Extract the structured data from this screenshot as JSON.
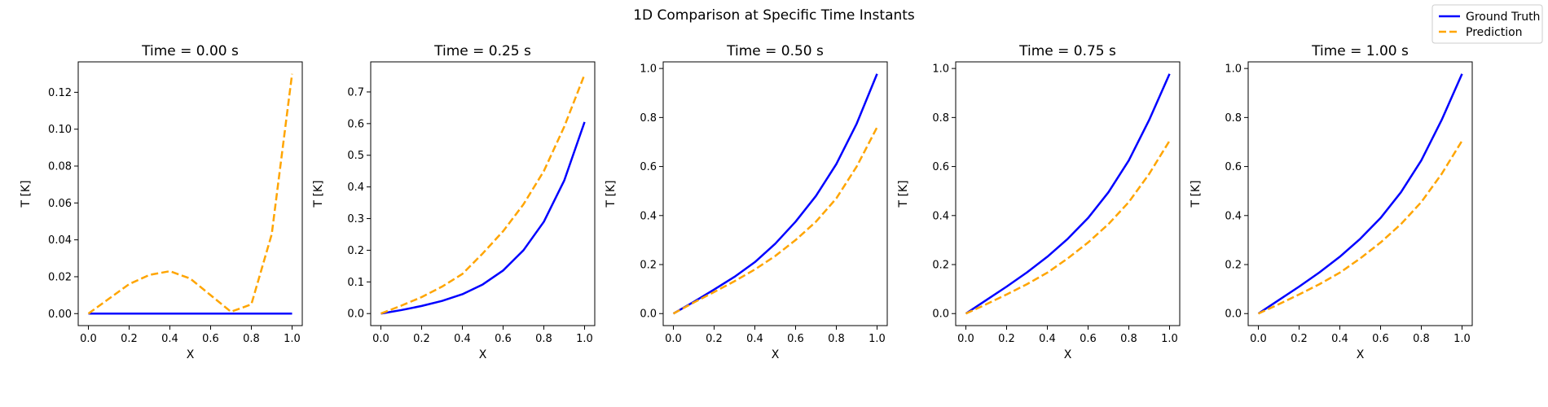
{
  "figure": {
    "suptitle": "1D Comparison at Specific Time Instants",
    "legend": {
      "placement": "top-right",
      "entries": [
        {
          "label": "Ground Truth",
          "color": "#0000ff",
          "style": "solid"
        },
        {
          "label": "Prediction",
          "color": "#ffa500",
          "style": "dashed"
        }
      ]
    }
  },
  "chart_data": [
    {
      "type": "line",
      "title": "Time = 0.00 s",
      "xlabel": "X",
      "ylabel": "T [K]",
      "xlim": [
        -0.05,
        1.05
      ],
      "ylim": [
        -0.0065,
        0.1365
      ],
      "xticks": [
        0.0,
        0.2,
        0.4,
        0.6,
        0.8,
        1.0
      ],
      "xtick_labels": [
        "0.0",
        "0.2",
        "0.4",
        "0.6",
        "0.8",
        "1.0"
      ],
      "yticks": [
        0.0,
        0.02,
        0.04,
        0.06,
        0.08,
        0.1,
        0.12
      ],
      "ytick_labels": [
        "0.00",
        "0.02",
        "0.04",
        "0.06",
        "0.08",
        "0.10",
        "0.12"
      ],
      "grid": false,
      "x": [
        0.0,
        0.1,
        0.2,
        0.3,
        0.4,
        0.5,
        0.6,
        0.7,
        0.8,
        0.9,
        1.0
      ],
      "series": [
        {
          "name": "Ground Truth",
          "color": "#0000ff",
          "style": "solid",
          "values": [
            0,
            0,
            0,
            0,
            0,
            0,
            0,
            0,
            0,
            0,
            0
          ]
        },
        {
          "name": "Prediction",
          "color": "#ffa500",
          "style": "dashed",
          "values": [
            0.0,
            0.008,
            0.016,
            0.021,
            0.023,
            0.019,
            0.01,
            0.001,
            0.005,
            0.043,
            0.13
          ]
        }
      ]
    },
    {
      "type": "line",
      "title": "Time = 0.25 s",
      "xlabel": "X",
      "ylabel": "T [K]",
      "xlim": [
        -0.05,
        1.05
      ],
      "ylim": [
        -0.038,
        0.795
      ],
      "xticks": [
        0.0,
        0.2,
        0.4,
        0.6,
        0.8,
        1.0
      ],
      "xtick_labels": [
        "0.0",
        "0.2",
        "0.4",
        "0.6",
        "0.8",
        "1.0"
      ],
      "yticks": [
        0.0,
        0.1,
        0.2,
        0.3,
        0.4,
        0.5,
        0.6,
        0.7
      ],
      "ytick_labels": [
        "0.0",
        "0.1",
        "0.2",
        "0.3",
        "0.4",
        "0.5",
        "0.6",
        "0.7"
      ],
      "grid": false,
      "x": [
        0.0,
        0.1,
        0.2,
        0.3,
        0.4,
        0.5,
        0.6,
        0.7,
        0.8,
        0.9,
        1.0
      ],
      "series": [
        {
          "name": "Ground Truth",
          "color": "#0000ff",
          "style": "solid",
          "values": [
            0.0,
            0.011,
            0.024,
            0.04,
            0.061,
            0.092,
            0.136,
            0.2,
            0.29,
            0.42,
            0.605
          ]
        },
        {
          "name": "Prediction",
          "color": "#ffa500",
          "style": "dashed",
          "values": [
            0.0,
            0.025,
            0.052,
            0.085,
            0.125,
            0.19,
            0.26,
            0.345,
            0.45,
            0.59,
            0.755
          ]
        }
      ]
    },
    {
      "type": "line",
      "title": "Time = 0.50 s",
      "xlabel": "X",
      "ylabel": "T [K]",
      "xlim": [
        -0.05,
        1.05
      ],
      "ylim": [
        -0.049,
        1.027
      ],
      "xticks": [
        0.0,
        0.2,
        0.4,
        0.6,
        0.8,
        1.0
      ],
      "xtick_labels": [
        "0.0",
        "0.2",
        "0.4",
        "0.6",
        "0.8",
        "1.0"
      ],
      "yticks": [
        0.0,
        0.2,
        0.4,
        0.6,
        0.8,
        1.0
      ],
      "ytick_labels": [
        "0.0",
        "0.2",
        "0.4",
        "0.6",
        "0.8",
        "1.0"
      ],
      "grid": false,
      "x": [
        0.0,
        0.1,
        0.2,
        0.3,
        0.4,
        0.5,
        0.6,
        0.7,
        0.8,
        0.9,
        1.0
      ],
      "series": [
        {
          "name": "Ground Truth",
          "color": "#0000ff",
          "style": "solid",
          "values": [
            0.0,
            0.048,
            0.098,
            0.15,
            0.21,
            0.285,
            0.375,
            0.48,
            0.61,
            0.775,
            0.978
          ]
        },
        {
          "name": "Prediction",
          "color": "#ffa500",
          "style": "dashed",
          "values": [
            0.0,
            0.045,
            0.088,
            0.132,
            0.18,
            0.235,
            0.3,
            0.375,
            0.47,
            0.6,
            0.76
          ]
        }
      ]
    },
    {
      "type": "line",
      "title": "Time = 0.75 s",
      "xlabel": "X",
      "ylabel": "T [K]",
      "xlim": [
        -0.05,
        1.05
      ],
      "ylim": [
        -0.049,
        1.027
      ],
      "xticks": [
        0.0,
        0.2,
        0.4,
        0.6,
        0.8,
        1.0
      ],
      "xtick_labels": [
        "0.0",
        "0.2",
        "0.4",
        "0.6",
        "0.8",
        "1.0"
      ],
      "yticks": [
        0.0,
        0.2,
        0.4,
        0.6,
        0.8,
        1.0
      ],
      "ytick_labels": [
        "0.0",
        "0.2",
        "0.4",
        "0.6",
        "0.8",
        "1.0"
      ],
      "grid": false,
      "x": [
        0.0,
        0.1,
        0.2,
        0.3,
        0.4,
        0.5,
        0.6,
        0.7,
        0.8,
        0.9,
        1.0
      ],
      "series": [
        {
          "name": "Ground Truth",
          "color": "#0000ff",
          "style": "solid",
          "values": [
            0.0,
            0.055,
            0.11,
            0.168,
            0.232,
            0.305,
            0.39,
            0.495,
            0.625,
            0.79,
            0.978
          ]
        },
        {
          "name": "Prediction",
          "color": "#ffa500",
          "style": "dashed",
          "values": [
            0.0,
            0.038,
            0.078,
            0.12,
            0.167,
            0.225,
            0.29,
            0.365,
            0.455,
            0.57,
            0.705
          ]
        }
      ]
    },
    {
      "type": "line",
      "title": "Time = 1.00 s",
      "xlabel": "X",
      "ylabel": "T [K]",
      "xlim": [
        -0.05,
        1.05
      ],
      "ylim": [
        -0.049,
        1.027
      ],
      "xticks": [
        0.0,
        0.2,
        0.4,
        0.6,
        0.8,
        1.0
      ],
      "xtick_labels": [
        "0.0",
        "0.2",
        "0.4",
        "0.6",
        "0.8",
        "1.0"
      ],
      "yticks": [
        0.0,
        0.2,
        0.4,
        0.6,
        0.8,
        1.0
      ],
      "ytick_labels": [
        "0.0",
        "0.2",
        "0.4",
        "0.6",
        "0.8",
        "1.0"
      ],
      "grid": false,
      "x": [
        0.0,
        0.1,
        0.2,
        0.3,
        0.4,
        0.5,
        0.6,
        0.7,
        0.8,
        0.9,
        1.0
      ],
      "series": [
        {
          "name": "Ground Truth",
          "color": "#0000ff",
          "style": "solid",
          "values": [
            0.0,
            0.055,
            0.11,
            0.168,
            0.232,
            0.305,
            0.39,
            0.495,
            0.625,
            0.79,
            0.978
          ]
        },
        {
          "name": "Prediction",
          "color": "#ffa500",
          "style": "dashed",
          "values": [
            0.0,
            0.038,
            0.078,
            0.12,
            0.167,
            0.225,
            0.29,
            0.365,
            0.455,
            0.57,
            0.705
          ]
        }
      ]
    }
  ]
}
